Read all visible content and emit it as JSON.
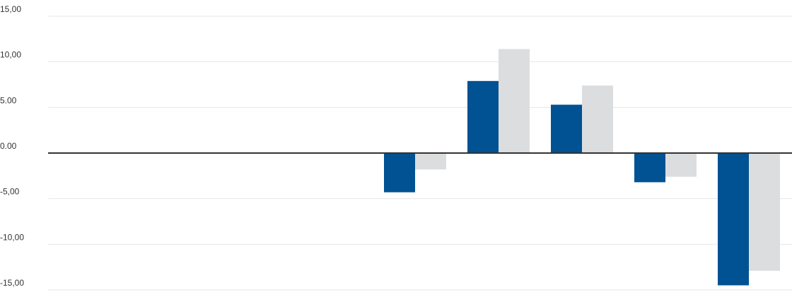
{
  "chart_data": {
    "type": "bar",
    "title": "",
    "xlabel": "",
    "ylabel": "",
    "ylim": [
      -15,
      15
    ],
    "y_ticks": [
      {
        "value": 15,
        "label": "15,00"
      },
      {
        "value": 10,
        "label": "10,00"
      },
      {
        "value": 5,
        "label": "5.00"
      },
      {
        "value": 0,
        "label": "0.00"
      },
      {
        "value": -5,
        "label": "-5,00"
      },
      {
        "value": -10,
        "label": "-10,00"
      },
      {
        "value": -15,
        "label": "-15,00"
      }
    ],
    "grid": true,
    "categories": [
      "",
      "",
      "",
      "",
      "",
      "",
      "",
      "",
      ""
    ],
    "series": [
      {
        "color": "#005293",
        "values": [
          null,
          null,
          null,
          null,
          -4.3,
          7.9,
          5.3,
          -3.2,
          -14.5
        ]
      },
      {
        "color": "#dcdddf",
        "values": [
          null,
          null,
          null,
          null,
          -1.8,
          11.4,
          7.4,
          -2.6,
          -12.9
        ]
      }
    ]
  }
}
